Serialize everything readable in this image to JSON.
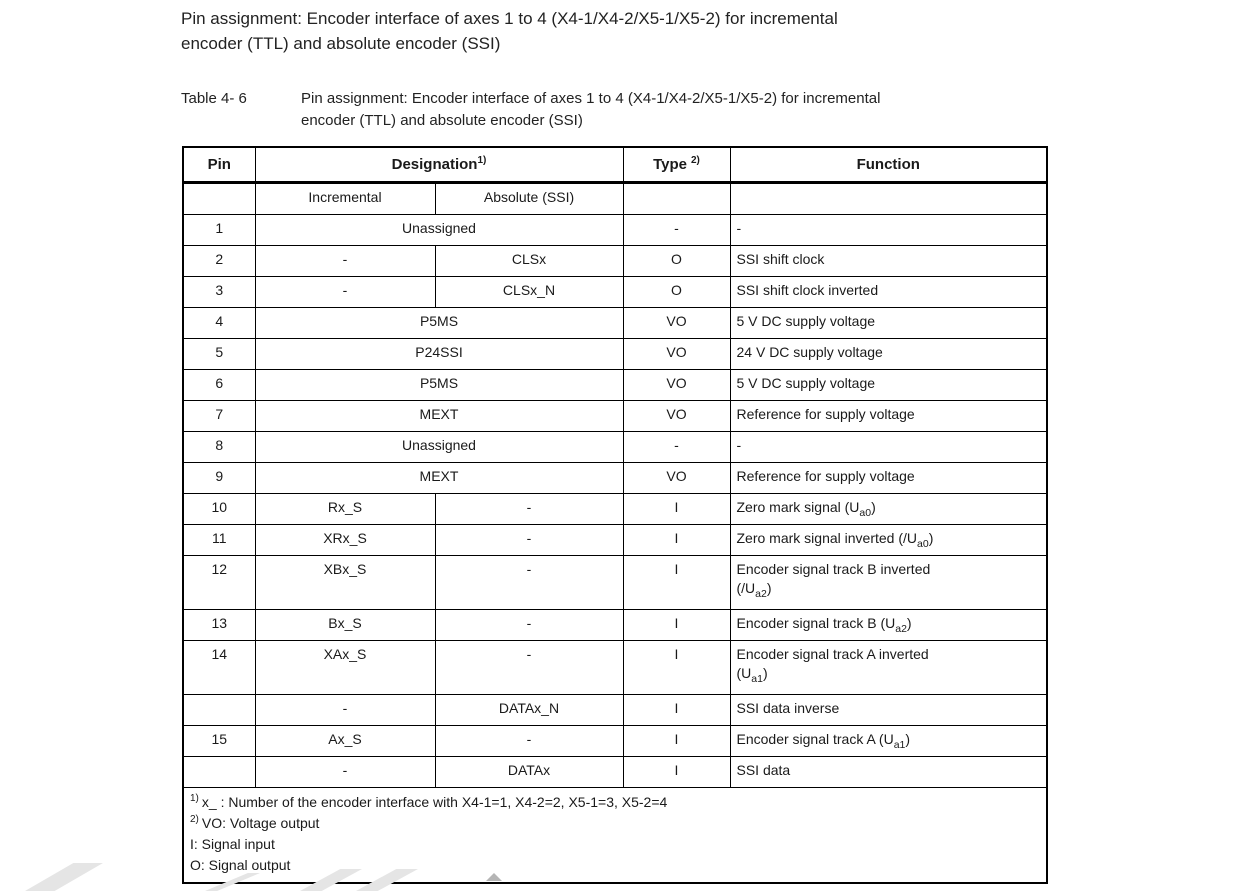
{
  "page": {
    "heading_lines": [
      "Pin assignment: Encoder interface of axes 1 to 4 (X4-1/X4-2/X5-1/X5-2) for incremental",
      "encoder (TTL) and absolute encoder (SSI)"
    ],
    "caption_label": "Table 4- 6",
    "caption_lines": [
      "Pin assignment: Encoder interface of axes 1 to 4 (X4-1/X4-2/X5-1/X5-2) for incremental",
      "encoder (TTL) and absolute encoder (SSI)"
    ]
  },
  "table": {
    "headers": {
      "pin": "Pin",
      "designation": "Designation",
      "designation_footnote_ref": "1)",
      "type": "Type",
      "type_footnote_ref": "2)",
      "function": "Function"
    },
    "subheaders": {
      "incremental": "Incremental",
      "absolute": "Absolute (SSI)"
    },
    "rows": [
      {
        "pin": "1",
        "designation": [
          {
            "span": 2,
            "text": "Unassigned"
          }
        ],
        "type": "-",
        "function": [
          {
            "t": "-"
          }
        ]
      },
      {
        "pin": "2",
        "designation": [
          {
            "span": 1,
            "text": "-"
          },
          {
            "span": 1,
            "text": "CLSx"
          }
        ],
        "type": "O",
        "function": [
          {
            "t": "SSI shift clock"
          }
        ]
      },
      {
        "pin": "3",
        "designation": [
          {
            "span": 1,
            "text": "-"
          },
          {
            "span": 1,
            "text": "CLSx_N"
          }
        ],
        "type": "O",
        "function": [
          {
            "t": "SSI shift clock inverted"
          }
        ]
      },
      {
        "pin": "4",
        "designation": [
          {
            "span": 2,
            "text": "P5MS"
          }
        ],
        "type": "VO",
        "function": [
          {
            "t": "5 V DC supply voltage"
          }
        ]
      },
      {
        "pin": "5",
        "designation": [
          {
            "span": 2,
            "text": "P24SSI"
          }
        ],
        "type": "VO",
        "function": [
          {
            "t": "24 V DC supply voltage"
          }
        ]
      },
      {
        "pin": "6",
        "designation": [
          {
            "span": 2,
            "text": "P5MS"
          }
        ],
        "type": "VO",
        "function": [
          {
            "t": "5 V DC supply voltage"
          }
        ]
      },
      {
        "pin": "7",
        "designation": [
          {
            "span": 2,
            "text": "MEXT"
          }
        ],
        "type": "VO",
        "function": [
          {
            "t": "Reference for supply voltage"
          }
        ]
      },
      {
        "pin": "8",
        "designation": [
          {
            "span": 2,
            "text": "Unassigned"
          }
        ],
        "type": "-",
        "function": [
          {
            "t": "-"
          }
        ]
      },
      {
        "pin": "9",
        "designation": [
          {
            "span": 2,
            "text": "MEXT"
          }
        ],
        "type": "VO",
        "function": [
          {
            "t": "Reference for supply voltage"
          }
        ]
      },
      {
        "pin": "10",
        "designation": [
          {
            "span": 1,
            "text": "Rx_S"
          },
          {
            "span": 1,
            "text": "-"
          }
        ],
        "type": "I",
        "function": [
          {
            "t": "Zero mark signal (U"
          },
          {
            "t": "a0",
            "sub": true
          },
          {
            "t": ")"
          }
        ]
      },
      {
        "pin": "11",
        "designation": [
          {
            "span": 1,
            "text": "XRx_S"
          },
          {
            "span": 1,
            "text": "-"
          }
        ],
        "type": "I",
        "function": [
          {
            "t": "Zero mark signal inverted (/U"
          },
          {
            "t": "a0",
            "sub": true
          },
          {
            "t": ")"
          }
        ]
      },
      {
        "pin": "12",
        "designation": [
          {
            "span": 1,
            "text": "XBx_S"
          },
          {
            "span": 1,
            "text": "-"
          }
        ],
        "type": "I",
        "function": [
          {
            "t": "Encoder signal track B inverted"
          },
          {
            "br": true
          },
          {
            "t": "(/U"
          },
          {
            "t": "a2",
            "sub": true
          },
          {
            "t": ")"
          }
        ]
      },
      {
        "pin": "13",
        "designation": [
          {
            "span": 1,
            "text": "Bx_S"
          },
          {
            "span": 1,
            "text": "-"
          }
        ],
        "type": "I",
        "function": [
          {
            "t": "Encoder signal track B (U"
          },
          {
            "t": "a2",
            "sub": true
          },
          {
            "t": ")"
          }
        ]
      },
      {
        "pin": "14",
        "designation": [
          {
            "span": 1,
            "text": "XAx_S"
          },
          {
            "span": 1,
            "text": "-"
          }
        ],
        "type": "I",
        "function": [
          {
            "t": "Encoder signal track A inverted"
          },
          {
            "br": true
          },
          {
            "t": "(U"
          },
          {
            "t": "a1",
            "sub": true
          },
          {
            "t": ")"
          }
        ]
      },
      {
        "pin": "",
        "designation": [
          {
            "span": 1,
            "text": "-"
          },
          {
            "span": 1,
            "text": "DATAx_N"
          }
        ],
        "type": "I",
        "function": [
          {
            "t": "SSI data inverse"
          }
        ]
      },
      {
        "pin": "15",
        "designation": [
          {
            "span": 1,
            "text": "Ax_S"
          },
          {
            "span": 1,
            "text": "-"
          }
        ],
        "type": "I",
        "function": [
          {
            "t": "Encoder signal track A (U"
          },
          {
            "t": "a1",
            "sub": true
          },
          {
            "t": ")"
          }
        ]
      },
      {
        "pin": "",
        "designation": [
          {
            "span": 1,
            "text": "-"
          },
          {
            "span": 1,
            "text": "DATAx"
          }
        ],
        "type": "I",
        "function": [
          {
            "t": "SSI data"
          }
        ]
      }
    ],
    "footnotes": [
      {
        "ref": "1)",
        "text": "x_ : Number of the encoder interface with X4-1=1, X4-2=2, X5-1=3, X5-2=4"
      },
      {
        "ref": "2)",
        "text": "VO: Voltage output"
      },
      {
        "ref": "",
        "text": "I: Signal input"
      },
      {
        "ref": "",
        "text": "O: Signal output"
      }
    ]
  },
  "colors": {
    "page_background": "#ffffff",
    "text": "#1a1a1a",
    "table_border": "#000000",
    "watermark": "#e5e5e5",
    "watermark_arrow": "#b5b5b5"
  }
}
